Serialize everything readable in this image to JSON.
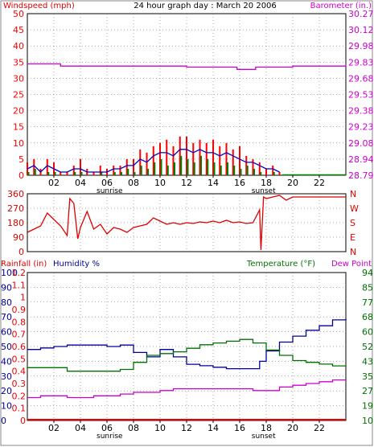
{
  "header": {
    "title": "24 hour graph day : March 20 2006",
    "left_label": "Windspeed (mph)",
    "right_label": "Barometer (in.)"
  },
  "colors": {
    "wind": "#ff0000",
    "gust": "#008000",
    "wind_avg": "#0000c0",
    "barometer": "#cc00cc",
    "direction": "#dd0000",
    "humidity": "#000099",
    "temperature": "#007000",
    "dew_point": "#cc00cc",
    "rain": "#ee0000",
    "grid": "#000000"
  },
  "x_axis": {
    "tick_labels": [
      "02",
      "04",
      "06",
      "08",
      "10",
      "12",
      "14",
      "16",
      "18",
      "20",
      "22"
    ],
    "tick_hours": [
      2,
      4,
      6,
      8,
      10,
      12,
      14,
      16,
      18,
      20,
      22
    ],
    "sunrise_label": "sunrise",
    "sunset_label": "sunset"
  },
  "chart_data": [
    {
      "type": "line",
      "title": "24 hour graph day : March 20 2006",
      "ylabel": "Windspeed (mph)",
      "y2label": "Barometer (in.)",
      "xlim": [
        0,
        24
      ],
      "ylim": [
        0,
        50
      ],
      "y_ticks": [
        "0",
        "5",
        "10",
        "15",
        "20",
        "25",
        "30",
        "35",
        "40",
        "45",
        "50"
      ],
      "y2_ticks": [
        "28.79",
        "28.94",
        "29.08",
        "29.23",
        "29.38",
        "29.53",
        "29.68",
        "29.83",
        "29.98",
        "30.12",
        "30.27"
      ],
      "y2lim": [
        28.79,
        30.27
      ],
      "grid": true,
      "series": [
        {
          "name": "Windspeed (mph)",
          "axis": "left",
          "x": [
            0.0,
            0.5,
            1.0,
            1.5,
            2.0,
            2.5,
            3.0,
            3.5,
            4.0,
            4.5,
            5.0,
            5.5,
            6.0,
            6.5,
            7.0,
            7.5,
            8.0,
            8.5,
            9.0,
            9.5,
            10.0,
            10.5,
            11.0,
            11.5,
            12.0,
            12.5,
            13.0,
            13.5,
            14.0,
            14.5,
            15.0,
            15.5,
            16.0,
            16.5,
            17.0,
            17.5,
            18.0,
            18.5,
            19.0,
            19.2
          ],
          "values": [
            4,
            5,
            2,
            5,
            4,
            1,
            1,
            3,
            5,
            2,
            1,
            3,
            2,
            3,
            3,
            5,
            5,
            8,
            7,
            9,
            10,
            11,
            9,
            12,
            12,
            10,
            11,
            10,
            11,
            9,
            10,
            8,
            9,
            6,
            5,
            4,
            2,
            3,
            1,
            0
          ]
        },
        {
          "name": "Gust (mph)",
          "axis": "left",
          "x": [
            0.0,
            0.5,
            1.0,
            1.5,
            2.0,
            2.5,
            3.0,
            3.5,
            4.0,
            4.5,
            5.0,
            5.5,
            6.0,
            6.5,
            7.0,
            7.5,
            8.0,
            8.5,
            9.0,
            9.5,
            10.0,
            10.5,
            11.0,
            11.5,
            12.0,
            12.5,
            13.0,
            13.5,
            14.0,
            14.5,
            15.0,
            15.5,
            16.0,
            16.5,
            17.0,
            17.5,
            18.0,
            18.5,
            19.0
          ],
          "values": [
            1,
            2,
            0,
            1,
            1,
            0,
            0,
            1,
            1,
            0,
            0,
            1,
            0,
            1,
            1,
            2,
            1,
            3,
            2,
            4,
            5,
            3,
            4,
            6,
            5,
            4,
            6,
            5,
            4,
            3,
            4,
            3,
            2,
            3,
            2,
            1,
            0,
            1,
            0
          ]
        },
        {
          "name": "Wind average (mph)",
          "axis": "left",
          "x": [
            0.0,
            0.5,
            1.0,
            1.5,
            2.0,
            2.5,
            3.0,
            3.5,
            4.0,
            4.5,
            5.0,
            5.5,
            6.0,
            6.5,
            7.0,
            7.5,
            8.0,
            8.5,
            9.0,
            9.5,
            10.0,
            10.5,
            11.0,
            11.5,
            12.0,
            12.5,
            13.0,
            13.5,
            14.0,
            14.5,
            15.0,
            15.5,
            16.0,
            16.5,
            17.0,
            17.5,
            18.0,
            18.5,
            19.0
          ],
          "values": [
            2,
            3,
            1,
            3,
            2,
            1,
            1,
            2,
            2,
            1,
            1,
            1,
            1,
            2,
            2,
            3,
            3,
            5,
            4,
            6,
            7,
            7,
            6,
            8,
            8,
            7,
            8,
            7,
            7,
            6,
            7,
            6,
            5,
            4,
            4,
            3,
            2,
            2,
            1
          ]
        },
        {
          "name": "Barometer (in.)",
          "axis": "right",
          "x": [
            0,
            2,
            2.5,
            4,
            6,
            8,
            10,
            12,
            14,
            15.8,
            16.2,
            17.2,
            18,
            20,
            22,
            24
          ],
          "values": [
            29.81,
            29.81,
            29.79,
            29.79,
            29.79,
            29.79,
            29.79,
            29.78,
            29.78,
            29.76,
            29.76,
            29.78,
            29.78,
            29.79,
            29.79,
            29.81
          ]
        }
      ]
    },
    {
      "type": "line",
      "ylabel": "Wind direction",
      "xlim": [
        0,
        24
      ],
      "ylim": [
        0,
        360
      ],
      "y_ticks": [
        "0",
        "90",
        "180",
        "270",
        "360"
      ],
      "compass_labels": [
        "N",
        "W",
        "S",
        "E",
        "N"
      ],
      "grid": true,
      "series": [
        {
          "name": "Wind direction",
          "x": [
            0.0,
            0.5,
            1.0,
            1.5,
            2.0,
            2.5,
            3.0,
            3.2,
            3.5,
            3.8,
            4.0,
            4.5,
            5.0,
            5.5,
            6.0,
            6.5,
            7.0,
            7.5,
            8.0,
            8.5,
            9.0,
            9.5,
            10.0,
            10.5,
            11.0,
            11.5,
            12.0,
            12.5,
            13.0,
            13.5,
            14.0,
            14.5,
            15.0,
            15.5,
            16.0,
            16.5,
            17.0,
            17.5,
            17.6,
            17.8,
            18.0,
            18.5,
            19.0,
            19.5,
            20.0,
            21.0,
            22.0,
            23.0,
            24.0
          ],
          "values": [
            120,
            140,
            160,
            240,
            200,
            160,
            100,
            330,
            300,
            80,
            150,
            250,
            140,
            170,
            110,
            150,
            140,
            120,
            150,
            160,
            170,
            210,
            190,
            170,
            180,
            170,
            180,
            175,
            185,
            180,
            190,
            180,
            195,
            180,
            185,
            175,
            180,
            260,
            10,
            340,
            330,
            340,
            350,
            320,
            340,
            340,
            340,
            340,
            340
          ]
        }
      ]
    },
    {
      "type": "line",
      "xlim": [
        0,
        24
      ],
      "rain_ticks": [
        "0",
        "0.1",
        "0.2",
        "0.3",
        "0.4",
        "0.5",
        "0.6",
        "0.7",
        "0.8",
        "0.9",
        "1",
        "1.1",
        "1.2"
      ],
      "humidity_ticks": [
        "0",
        "10",
        "20",
        "30",
        "40",
        "50",
        "60",
        "70",
        "80",
        "90",
        "100"
      ],
      "temp_ticks": [
        "10",
        "19",
        "27",
        "35",
        "43",
        "52",
        "60",
        "68",
        "77",
        "85",
        "94"
      ],
      "rain_label": "Rainfall (in)",
      "humidity_label": "Humidity %",
      "temp_label": "Temperature (°F)",
      "dew_label": "Dew Point",
      "ylim_rain": [
        0,
        1.2
      ],
      "ylim_humidity": [
        0,
        100
      ],
      "ylim_temp": [
        10,
        94
      ],
      "grid": true,
      "series": [
        {
          "name": "Humidity %",
          "axis": "humidity",
          "x": [
            0,
            1,
            2,
            3,
            4,
            5,
            6,
            7,
            8,
            9,
            10,
            11,
            12,
            13,
            14,
            15,
            16,
            17,
            17.5,
            18,
            19,
            20,
            21,
            22,
            23,
            24
          ],
          "values": [
            48,
            49,
            50,
            51,
            51,
            51,
            50,
            51,
            46,
            43,
            48,
            43,
            38,
            37,
            36,
            35,
            35,
            35,
            40,
            47,
            53,
            57,
            61,
            64,
            68,
            69
          ]
        },
        {
          "name": "Temperature (°F)",
          "axis": "temperature",
          "x": [
            0,
            1,
            2,
            3,
            4,
            5,
            6,
            7,
            8,
            9,
            10,
            11,
            12,
            13,
            14,
            15,
            16,
            17,
            18,
            19,
            20,
            21,
            22,
            23,
            24
          ],
          "values": [
            40,
            40,
            40,
            38,
            38,
            38,
            38,
            39,
            43,
            47,
            48,
            49,
            51,
            53,
            54,
            55,
            56,
            54,
            50,
            47,
            44,
            43,
            42,
            41,
            41
          ]
        },
        {
          "name": "Dew Point",
          "axis": "temperature",
          "x": [
            0,
            1,
            2,
            3,
            4,
            5,
            6,
            7,
            8,
            9,
            10,
            11,
            12,
            13,
            14,
            15,
            16,
            17,
            18,
            19,
            20,
            21,
            22,
            23,
            24
          ],
          "values": [
            23,
            24,
            24,
            23,
            23,
            24,
            24,
            25,
            26,
            26,
            27,
            28,
            28,
            28,
            28,
            28,
            28,
            27,
            27,
            29,
            30,
            31,
            32,
            33,
            33
          ]
        },
        {
          "name": "Rainfall (in)",
          "axis": "rain",
          "x": [
            0,
            24
          ],
          "values": [
            0,
            0
          ]
        }
      ]
    }
  ]
}
